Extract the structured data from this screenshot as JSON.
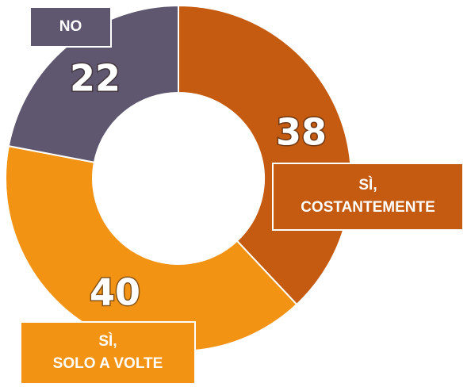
{
  "chart_data": {
    "type": "donut",
    "categories": [
      "SÌ,\nCOSTANTEMENTE",
      "SÌ,\nSOLO A VOLTE",
      "NO"
    ],
    "values": [
      38,
      40,
      22
    ],
    "colors": [
      "#C55A11",
      "#F39314",
      "#5F5670"
    ]
  }
}
